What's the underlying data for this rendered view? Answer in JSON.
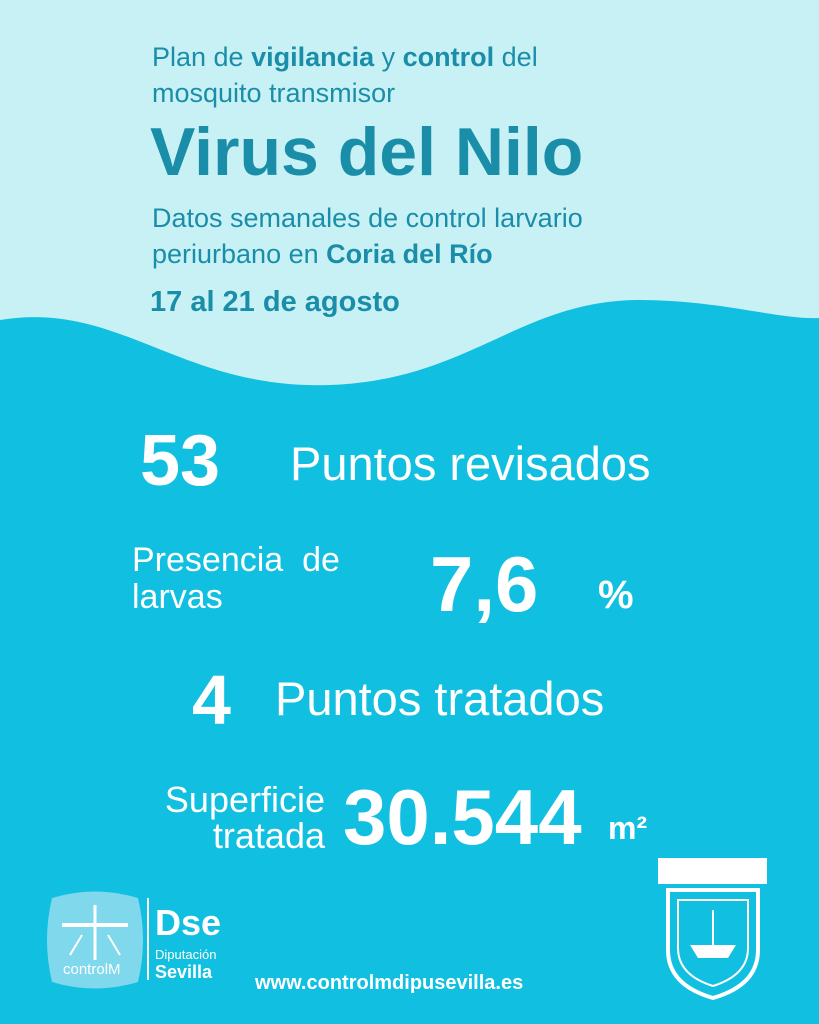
{
  "header": {
    "intro": [
      "Plan de ",
      "vigilancia",
      " y ",
      "control",
      " del"
    ],
    "intro2": "mosquito transmisor",
    "title": "Virus del Nilo",
    "subtitle1": "Datos semanales de control larvario",
    "subtitle2": [
      "periurbano en ",
      "Coria del Río"
    ],
    "date": "17 al 21 de agosto"
  },
  "stats": {
    "revisados": {
      "value": "53",
      "label": "Puntos revisados"
    },
    "larvas": {
      "label1": "Presencia  de",
      "label2": "larvas",
      "value": "7,6",
      "unit": "%"
    },
    "tratados": {
      "value": "4",
      "label": "Puntos tratados"
    },
    "superficie": {
      "label1": "Superficie",
      "label2": "tratada",
      "value": "30.544",
      "unit": "m²"
    }
  },
  "footer": {
    "logo1": "controlM",
    "logo2": "Dse",
    "logo2_sub1": "Diputación",
    "logo2_sub2": "Sevilla",
    "url": "www.controlmdipusevilla.es"
  }
}
